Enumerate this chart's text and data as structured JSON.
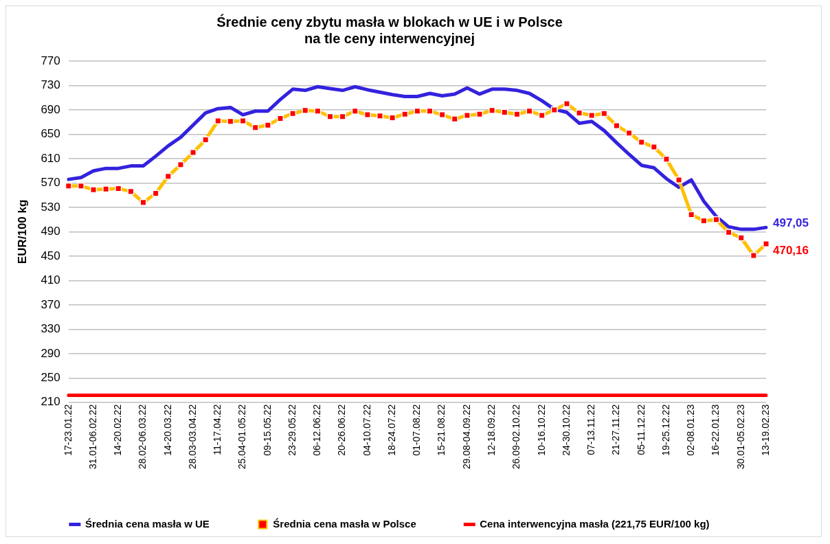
{
  "chart_data": {
    "type": "line",
    "title": "Średnie ceny zbytu masła w blokach w UE i w Polsce\nna tle ceny interwencyjnej",
    "ylabel": "EUR/100 kg",
    "categories": [
      "17-23.01.22",
      null,
      "31.01-06.02.22",
      null,
      "14-20.02.22",
      null,
      "28.02-06.03.22",
      null,
      "14-20.03.22",
      null,
      "28.03-03.04.22",
      null,
      "11-17.04.22",
      null,
      "25.04-01.05.22",
      null,
      "09-15.05.22",
      null,
      "23-29.05.22",
      null,
      "06-12.06.22",
      null,
      "20-26.06.22",
      null,
      "04-10.07.22",
      null,
      "18-24.07.22",
      null,
      "01-07.08.22",
      null,
      "15-21.08.22",
      null,
      "29.08-04.09.22",
      null,
      "12-18.09.22",
      null,
      "26.09-02.10.22",
      null,
      "10-16.10.22",
      null,
      "24-30.10.22",
      null,
      "07-13.11.22",
      null,
      "21-27.11.22",
      null,
      "05-11.12.22",
      null,
      "19-25.12.22",
      null,
      "02-08.01.23",
      null,
      "16-22.01.23",
      null,
      "30.01-05.02.23",
      null,
      "13-19.02.23"
    ],
    "series": [
      {
        "name": "Średnia cena masła w UE",
        "color": "#3322dd",
        "marker": "none",
        "values": [
          576,
          579,
          590,
          594,
          594,
          598,
          598,
          614,
          631,
          645,
          665,
          685,
          692,
          694,
          682,
          688,
          688,
          707,
          724,
          722,
          728,
          725,
          722,
          728,
          723,
          719,
          715,
          712,
          712,
          717,
          713,
          716,
          726,
          716,
          724,
          724,
          722,
          717,
          705,
          691,
          686,
          668,
          671,
          656,
          636,
          617,
          599,
          595,
          577,
          563,
          575,
          540,
          515,
          498,
          494,
          494,
          497.05
        ],
        "value_labels": [
          null,
          null,
          null,
          null,
          null,
          null,
          null,
          null,
          null,
          null,
          null,
          null,
          null,
          null,
          null,
          null,
          null,
          null,
          null,
          null,
          null,
          null,
          null,
          null,
          null,
          null,
          null,
          null,
          null,
          null,
          null,
          null,
          null,
          null,
          null,
          null,
          null,
          null,
          null,
          null,
          null,
          null,
          null,
          null,
          null,
          null,
          null,
          null,
          null,
          null,
          null,
          null,
          null,
          null,
          null,
          null,
          "497,05"
        ]
      },
      {
        "name": "Średnia cena masła w Polsce",
        "color": "#ffc000",
        "marker": "square",
        "values": [
          565,
          565,
          559,
          560,
          561,
          556,
          538,
          553,
          581,
          600,
          620,
          641,
          672,
          671,
          672,
          661,
          665,
          676,
          684,
          689,
          688,
          679,
          679,
          688,
          682,
          680,
          677,
          683,
          688,
          688,
          682,
          675,
          681,
          683,
          689,
          686,
          683,
          688,
          681,
          690,
          700,
          685,
          681,
          684,
          664,
          652,
          637,
          629,
          609,
          575,
          518,
          508,
          510,
          489,
          480,
          451,
          470.16
        ],
        "value_labels": [
          null,
          null,
          null,
          null,
          null,
          null,
          null,
          null,
          null,
          null,
          null,
          null,
          null,
          null,
          null,
          null,
          null,
          null,
          null,
          null,
          null,
          null,
          null,
          null,
          null,
          null,
          null,
          null,
          null,
          null,
          null,
          null,
          null,
          null,
          null,
          null,
          null,
          null,
          null,
          null,
          null,
          null,
          null,
          null,
          null,
          null,
          null,
          null,
          null,
          null,
          null,
          null,
          null,
          null,
          null,
          null,
          "470,16"
        ]
      },
      {
        "name": "Cena interwencyjna masła (221,75 EUR/100 kg)",
        "color": "#ff0000",
        "marker": "none",
        "values": [
          221.75,
          221.75,
          221.75,
          221.75,
          221.75,
          221.75,
          221.75,
          221.75,
          221.75,
          221.75,
          221.75,
          221.75,
          221.75,
          221.75,
          221.75,
          221.75,
          221.75,
          221.75,
          221.75,
          221.75,
          221.75,
          221.75,
          221.75,
          221.75,
          221.75,
          221.75,
          221.75,
          221.75,
          221.75,
          221.75,
          221.75,
          221.75,
          221.75,
          221.75,
          221.75,
          221.75,
          221.75,
          221.75,
          221.75,
          221.75,
          221.75,
          221.75,
          221.75,
          221.75,
          221.75,
          221.75,
          221.75,
          221.75,
          221.75,
          221.75,
          221.75,
          221.75,
          221.75,
          221.75,
          221.75,
          221.75,
          221.75
        ]
      }
    ],
    "ylim": [
      210,
      770
    ],
    "yticks": [
      210,
      250,
      290,
      330,
      370,
      410,
      450,
      490,
      530,
      570,
      610,
      650,
      690,
      730,
      770
    ],
    "grid": "y",
    "legend": "bottom"
  }
}
